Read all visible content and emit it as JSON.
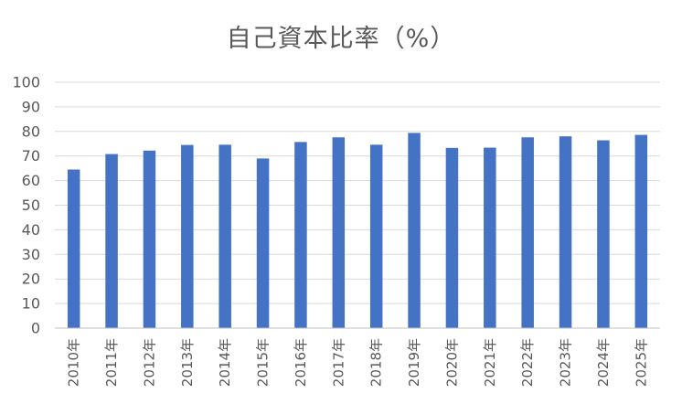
{
  "chart_data": {
    "type": "bar",
    "title": "自己資本比率（%）",
    "xlabel": "",
    "ylabel": "",
    "categories": [
      "2010年",
      "2011年",
      "2012年",
      "2013年",
      "2014年",
      "2015年",
      "2016年",
      "2017年",
      "2018年",
      "2019年",
      "2020年",
      "2021年",
      "2022年",
      "2023年",
      "2024年",
      "2025年"
    ],
    "values": [
      64.5,
      70.8,
      72.2,
      74.5,
      74.6,
      69.0,
      75.7,
      77.6,
      74.6,
      79.4,
      73.3,
      73.4,
      77.6,
      78.0,
      76.4,
      78.6
    ],
    "ylim": [
      0,
      100
    ],
    "yticks": [
      0,
      10,
      20,
      30,
      40,
      50,
      60,
      70,
      80,
      90,
      100
    ],
    "grid": true,
    "legend": "none",
    "bar_color": "#4472C4",
    "grid_color": "#d9d9d9",
    "text_color": "#595959"
  }
}
